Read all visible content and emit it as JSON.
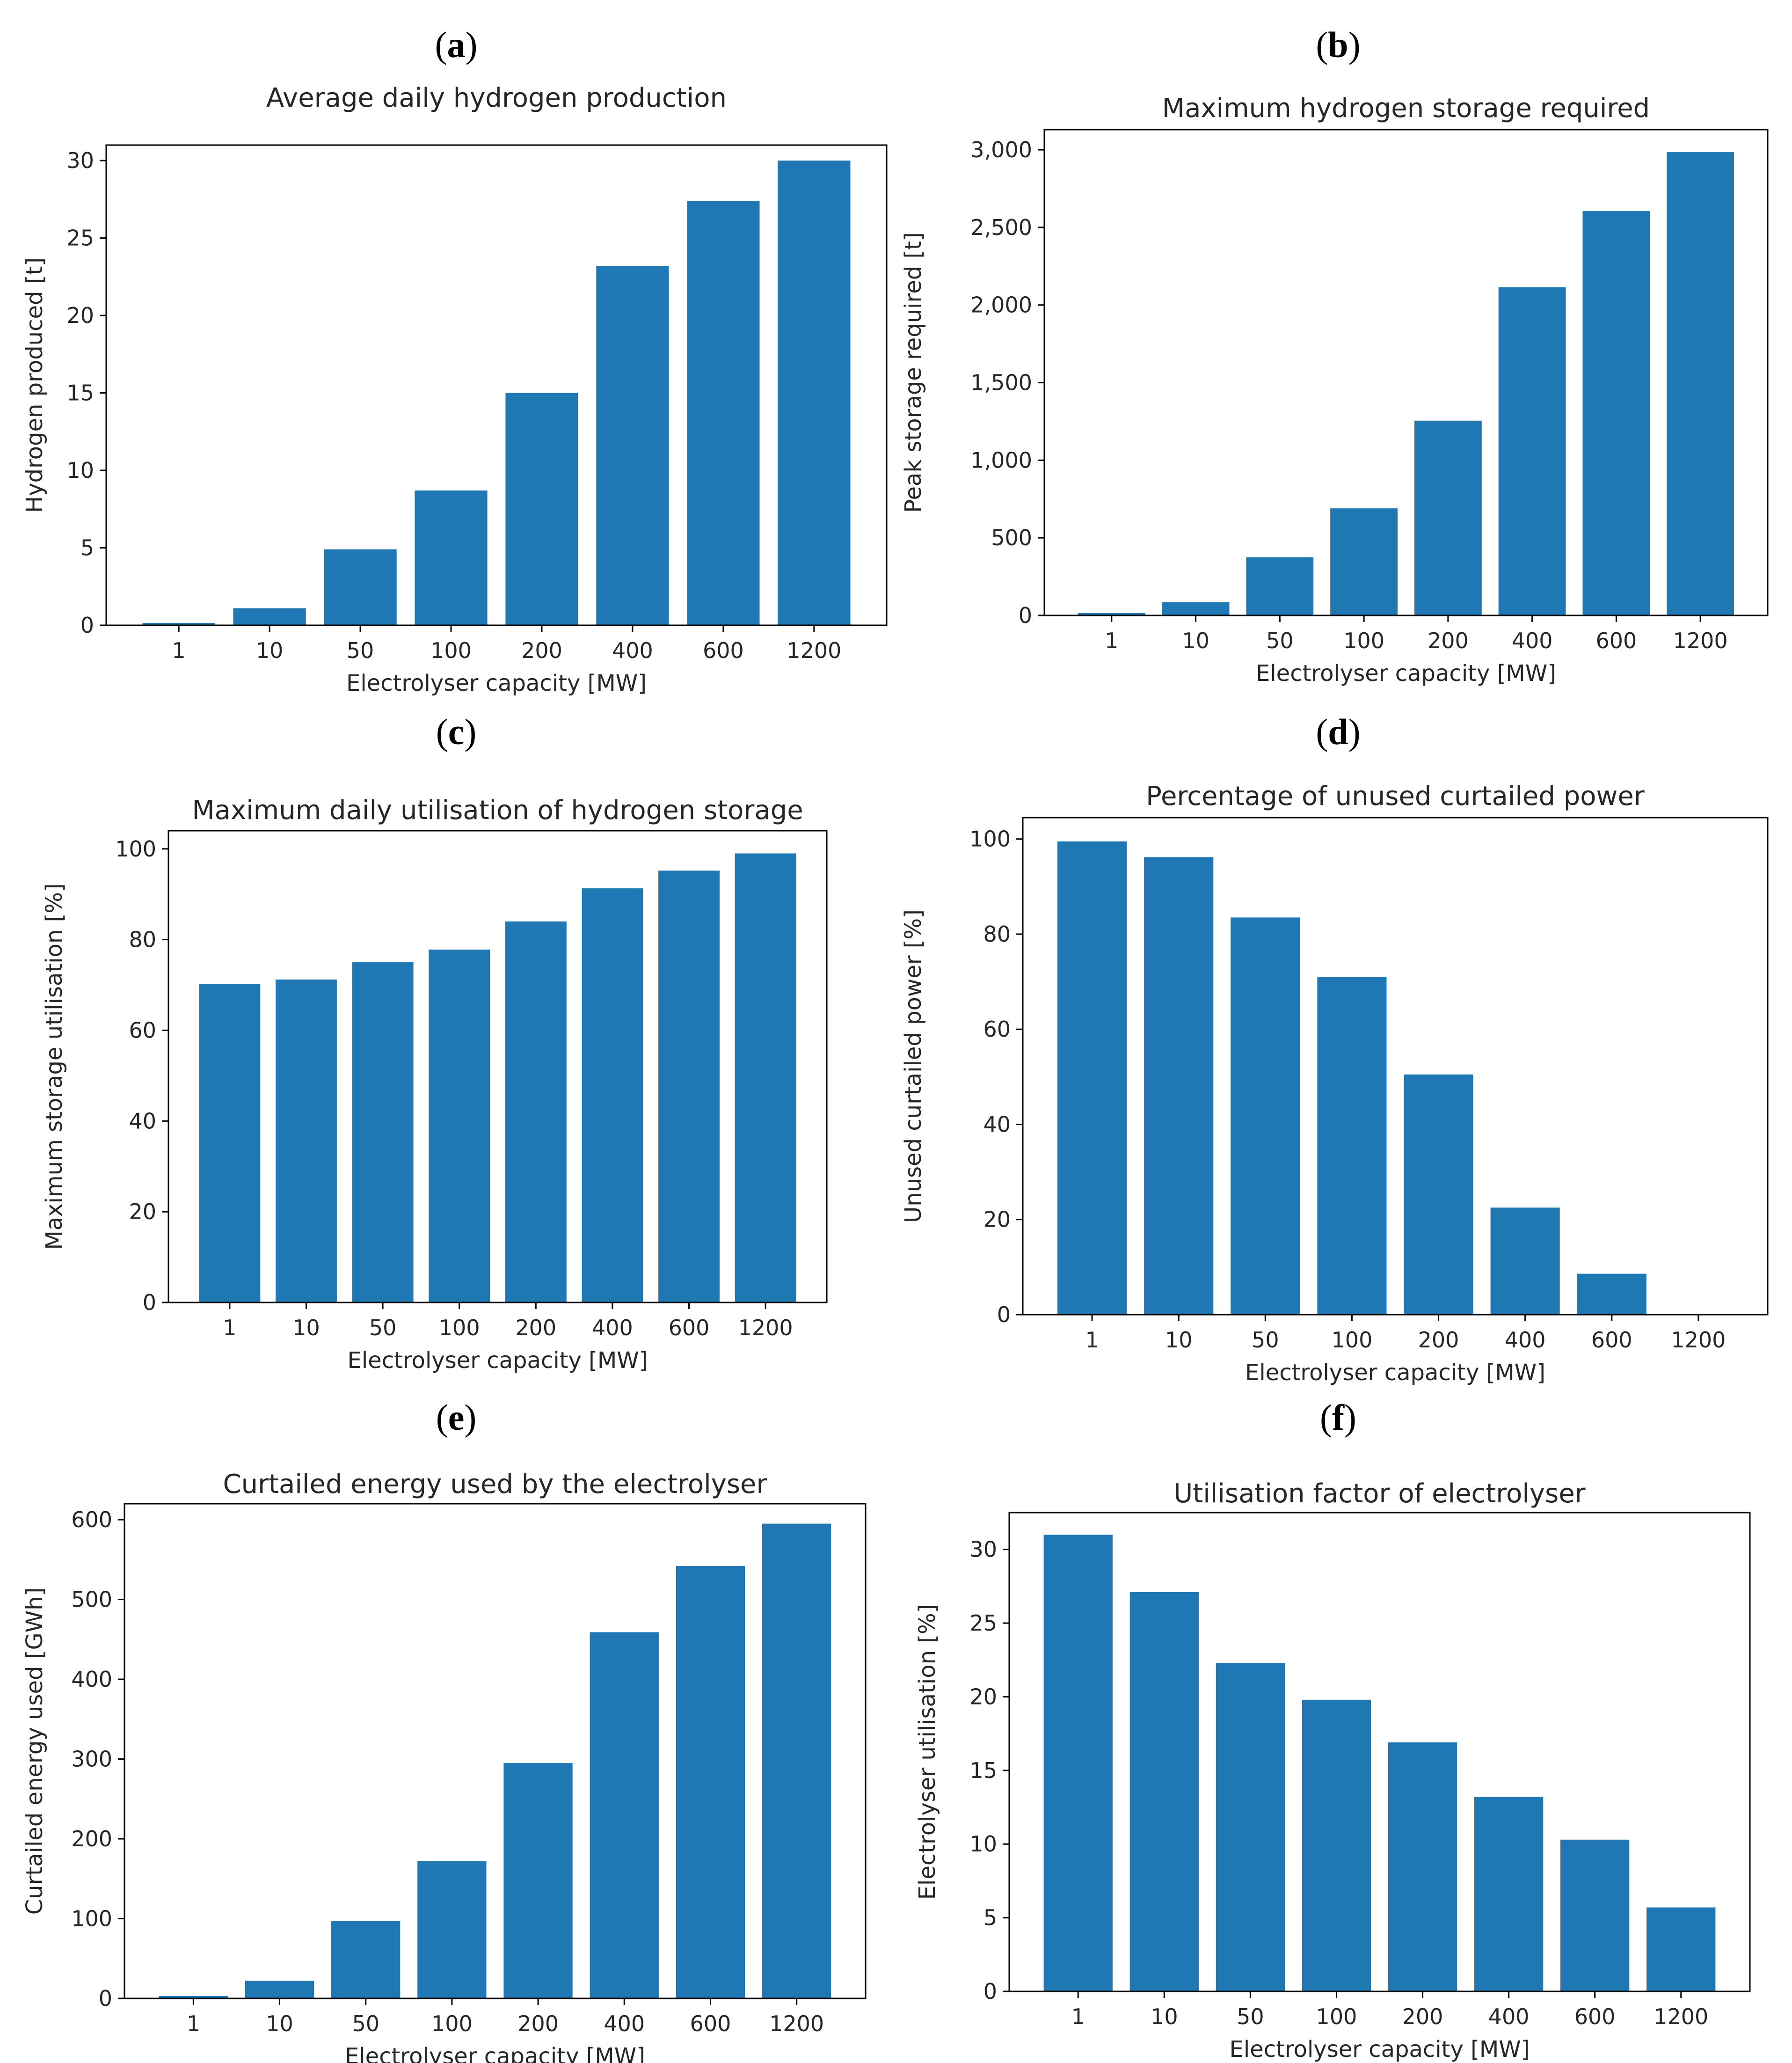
{
  "chart_data": [
    {
      "panel": "(a)",
      "panel_letter": "a",
      "type": "bar",
      "title": "Average daily hydrogen production",
      "xlabel": "Electrolyser capacity [MW]",
      "ylabel": "Hydrogen produced [t]",
      "categories": [
        "1",
        "10",
        "50",
        "100",
        "200",
        "400",
        "600",
        "1200"
      ],
      "values": [
        0.15,
        1.1,
        4.9,
        8.7,
        15.0,
        23.2,
        27.4,
        30.0
      ],
      "ylim": [
        0,
        31
      ],
      "yticks": [
        0,
        5,
        10,
        15,
        20,
        25,
        30
      ],
      "ytick_labels": [
        "0",
        "5",
        "10",
        "15",
        "20",
        "25",
        "30"
      ],
      "bar_color": "#1f77b4"
    },
    {
      "panel": "(b)",
      "panel_letter": "b",
      "type": "bar",
      "title": "Maximum hydrogen storage required",
      "xlabel": "Electrolyser capacity [MW]",
      "ylabel": "Peak storage required [t]",
      "categories": [
        "1",
        "10",
        "50",
        "100",
        "200",
        "400",
        "600",
        "1200"
      ],
      "values": [
        15,
        85,
        375,
        690,
        1255,
        2115,
        2605,
        2985
      ],
      "ylim": [
        0,
        3130
      ],
      "yticks": [
        0,
        500,
        1000,
        1500,
        2000,
        2500,
        3000
      ],
      "ytick_labels": [
        "0",
        "500",
        "1,000",
        "1,500",
        "2,000",
        "2,500",
        "3,000"
      ],
      "bar_color": "#1f77b4"
    },
    {
      "panel": "(c)",
      "panel_letter": "c",
      "type": "bar",
      "title": "Maximum daily utilisation of hydrogen storage",
      "xlabel": "Electrolyser capacity [MW]",
      "ylabel": "Maximum storage utilisation [%]",
      "categories": [
        "1",
        "10",
        "50",
        "100",
        "200",
        "400",
        "600",
        "1200"
      ],
      "values": [
        70.2,
        71.2,
        75.0,
        77.8,
        84.0,
        91.3,
        95.2,
        99.0
      ],
      "ylim": [
        0,
        104
      ],
      "yticks": [
        0,
        20,
        40,
        60,
        80,
        100
      ],
      "ytick_labels": [
        "0",
        "20",
        "40",
        "60",
        "80",
        "100"
      ],
      "bar_color": "#1f77b4"
    },
    {
      "panel": "(d)",
      "panel_letter": "d",
      "type": "bar",
      "title": "Percentage of unused curtailed power",
      "xlabel": "Electrolyser capacity [MW]",
      "ylabel": "Unused curtailed power [%]",
      "categories": [
        "1",
        "10",
        "50",
        "100",
        "200",
        "400",
        "600",
        "1200"
      ],
      "values": [
        99.5,
        96.2,
        83.5,
        71.0,
        50.5,
        22.5,
        8.6,
        0
      ],
      "ylim": [
        0,
        104.5
      ],
      "yticks": [
        0,
        20,
        40,
        60,
        80,
        100
      ],
      "ytick_labels": [
        "0",
        "20",
        "40",
        "60",
        "80",
        "100"
      ],
      "bar_color": "#1f77b4"
    },
    {
      "panel": "(e)",
      "panel_letter": "e",
      "type": "bar",
      "title": "Curtailed energy used by the electrolyser",
      "xlabel": "Electrolyser capacity [MW]",
      "ylabel": "Curtailed energy used [GWh]",
      "categories": [
        "1",
        "10",
        "50",
        "100",
        "200",
        "400",
        "600",
        "1200"
      ],
      "values": [
        3,
        22,
        97,
        172,
        295,
        459,
        542,
        595
      ],
      "ylim": [
        0,
        620
      ],
      "yticks": [
        0,
        100,
        200,
        300,
        400,
        500,
        600
      ],
      "ytick_labels": [
        "0",
        "100",
        "200",
        "300",
        "400",
        "500",
        "600"
      ],
      "bar_color": "#1f77b4"
    },
    {
      "panel": "(f)",
      "panel_letter": "f",
      "type": "bar",
      "title": "Utilisation factor of electrolyser",
      "xlabel": "Electrolyser capacity [MW]",
      "ylabel": "Electrolyser utilisation [%]",
      "categories": [
        "1",
        "10",
        "50",
        "100",
        "200",
        "400",
        "600",
        "1200"
      ],
      "values": [
        31.0,
        27.1,
        22.3,
        19.8,
        16.9,
        13.2,
        10.3,
        5.7
      ],
      "ylim": [
        0,
        32.5
      ],
      "yticks": [
        0,
        5,
        10,
        15,
        20,
        25,
        30
      ],
      "ytick_labels": [
        "0",
        "5",
        "10",
        "15",
        "20",
        "25",
        "30"
      ],
      "bar_color": "#1f77b4"
    }
  ]
}
